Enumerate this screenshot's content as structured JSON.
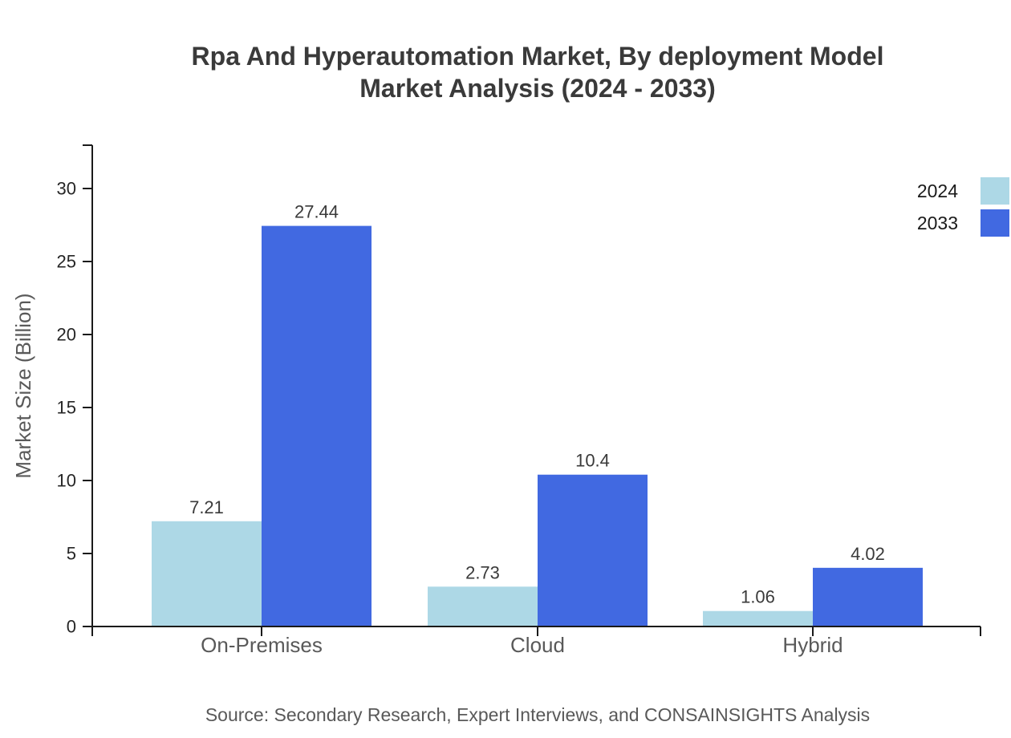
{
  "title": {
    "line1": "Rpa And Hyperautomation Market, By deployment Model",
    "line2": "Market Analysis (2024 - 2033)"
  },
  "source": "Source: Secondary Research, Expert Interviews, and CONSAINSIGHTS Analysis",
  "chart_data": {
    "type": "bar",
    "title": "Rpa And Hyperautomation Market, By deployment Model Market Analysis (2024 - 2033)",
    "categories": [
      "On-Premises",
      "Cloud",
      "Hybrid"
    ],
    "series": [
      {
        "name": "2024",
        "color": "#ADD8E6",
        "values": [
          7.21,
          2.73,
          1.06
        ]
      },
      {
        "name": "2033",
        "color": "#4169E1",
        "values": [
          27.44,
          10.4,
          4.02
        ]
      }
    ],
    "xlabel": "",
    "ylabel": "Market Size (Billion)",
    "yticks": [
      0,
      5,
      10,
      15,
      20,
      25,
      30
    ],
    "ylim": [
      0,
      33
    ],
    "grid": false,
    "value_labels": true,
    "legend_position": "upper-right-outside",
    "axis_color": "#1a1a1a"
  }
}
